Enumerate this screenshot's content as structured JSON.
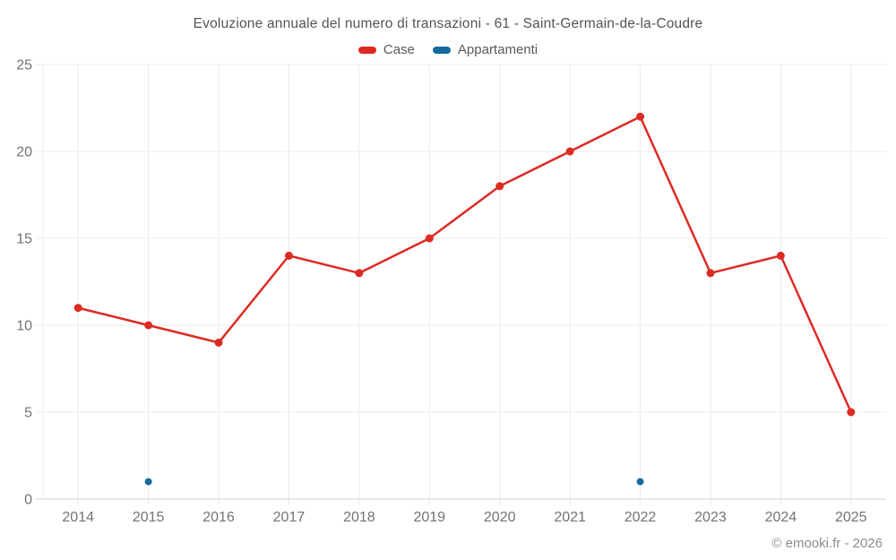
{
  "chart_data": {
    "type": "line",
    "title": "Evoluzione annuale del numero di transazioni - 61 - Saint-Germain-de-la-Coudre",
    "x": [
      2014,
      2015,
      2016,
      2017,
      2018,
      2019,
      2020,
      2021,
      2022,
      2023,
      2024,
      2025
    ],
    "series": [
      {
        "name": "Case",
        "color": "#dc2b23",
        "values": [
          11,
          10,
          9,
          14,
          13,
          15,
          18,
          20,
          22,
          13,
          14,
          5
        ],
        "show_line": true,
        "point_radius": 4.5
      },
      {
        "name": "Appartamenti",
        "color": "#166a9e",
        "values": [
          null,
          1,
          null,
          null,
          null,
          null,
          null,
          null,
          1,
          null,
          null,
          null
        ],
        "show_line": false,
        "point_radius": 4
      }
    ],
    "ylim": [
      0,
      25
    ],
    "y_ticks": [
      0,
      5,
      10,
      15,
      20,
      25
    ],
    "grid": true,
    "legend_position": "top",
    "xlabel": "",
    "ylabel": "",
    "copyright": "© emooki.fr - 2026"
  },
  "colors": {
    "background": "#ffffff",
    "grid": "#ebebeb",
    "axis": "#d2d2d2",
    "tick_label": "#737373",
    "title_text": "#545454",
    "legend_text": "#595959",
    "copyright_text": "#8c8c8c"
  }
}
